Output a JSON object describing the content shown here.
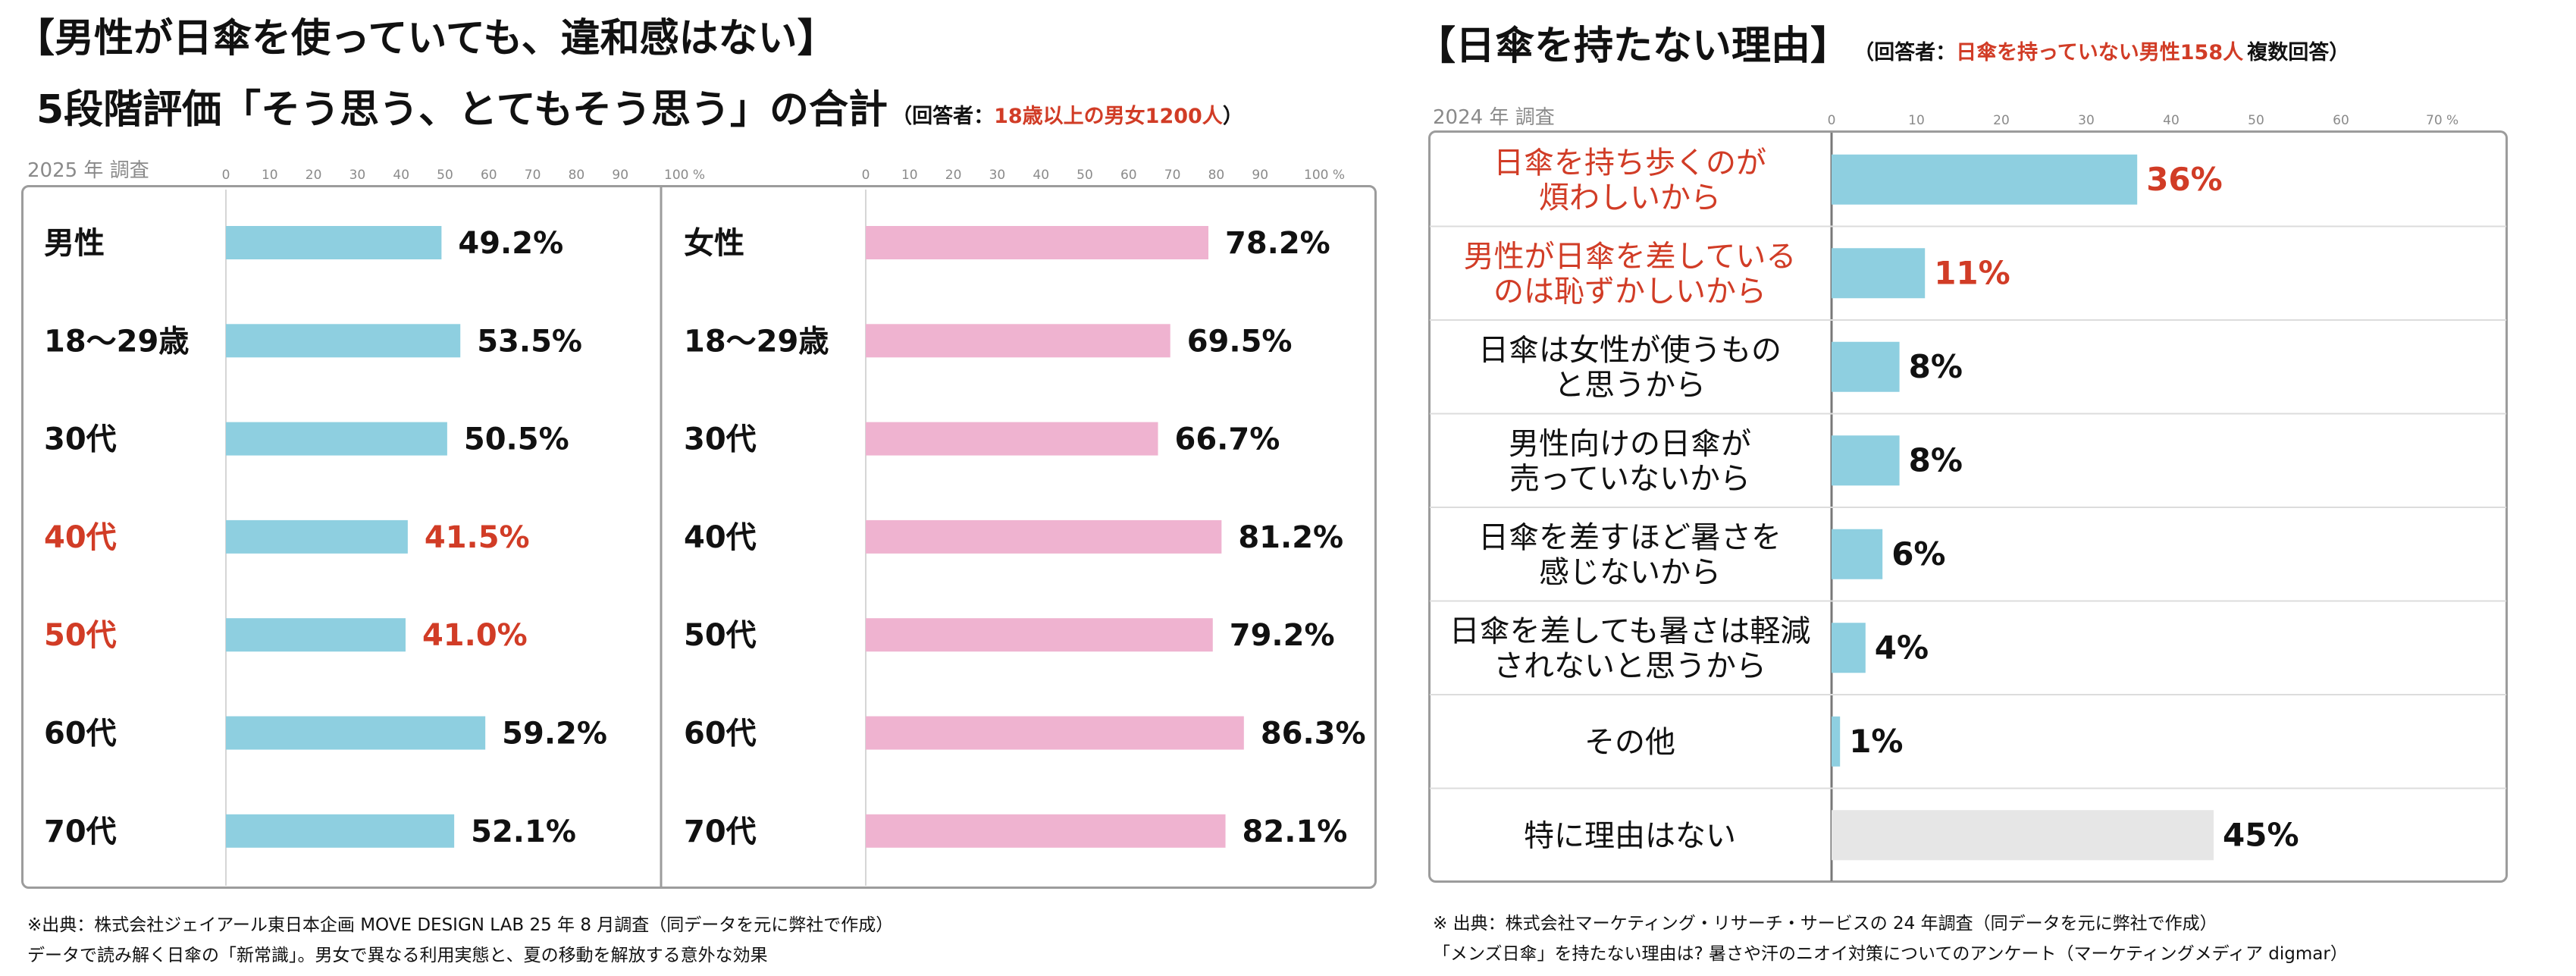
{
  "left": {
    "title": "【男性が日傘を使っていても、違和感はない】",
    "subtitle": "5段階評価「そう思う、とてもそう思う」の合計",
    "respondent_prefix": "（回答者：",
    "respondent_highlight": "18歳以上の男女1200人",
    "respondent_suffix": "）",
    "survey_label": "2025 年 調査",
    "source_line1": "※出典：株式会社ジェイアール東日本企画 MOVE DESIGN LAB 25 年 8 月調査（同データを元に弊社で作成）",
    "source_line2": "データで読み解く日傘の「新常識」。男女で異なる利用実態と、夏の移動を解放する意外な効果"
  },
  "right": {
    "title": "【日傘を持たない理由】",
    "respondent_prefix": "（回答者：",
    "respondent_highlight": "日傘を持っていない男性158人",
    "respondent_suffix": "複数回答）",
    "survey_label": "2024 年 調査",
    "source_line1": "※ 出典：株式会社マーケティング・リサーチ・サービスの 24 年調査（同データを元に弊社で作成）",
    "source_line2": "「メンズ日傘」を持たない理由は? 暑さや汗のニオイ対策についてのアンケート（マーケティングメディア digmar）"
  },
  "chart_data": [
    {
      "type": "bar",
      "orientation": "horizontal",
      "title": "男性",
      "categories": [
        "男性",
        "18〜29歳",
        "30代",
        "40代",
        "50代",
        "60代",
        "70代"
      ],
      "values": [
        49.2,
        53.5,
        50.5,
        41.5,
        41.0,
        59.2,
        52.1
      ],
      "value_labels": [
        "49.2%",
        "53.5%",
        "50.5%",
        "41.5%",
        "41.0%",
        "59.2%",
        "52.1%"
      ],
      "highlight": [
        false,
        false,
        false,
        true,
        true,
        false,
        false
      ],
      "xlim": [
        0,
        100
      ],
      "ticks": [
        "0",
        "10",
        "20",
        "30",
        "40",
        "50",
        "60",
        "70",
        "80",
        "90",
        "100 %"
      ],
      "color": "#8ecfe0",
      "highlight_color": "#d13c26"
    },
    {
      "type": "bar",
      "orientation": "horizontal",
      "title": "女性",
      "categories": [
        "女性",
        "18〜29歳",
        "30代",
        "40代",
        "50代",
        "60代",
        "70代"
      ],
      "values": [
        78.2,
        69.5,
        66.7,
        81.2,
        79.2,
        86.3,
        82.1
      ],
      "value_labels": [
        "78.2%",
        "69.5%",
        "66.7%",
        "81.2%",
        "79.2%",
        "86.3%",
        "82.1%"
      ],
      "xlim": [
        0,
        100
      ],
      "ticks": [
        "0",
        "10",
        "20",
        "30",
        "40",
        "50",
        "60",
        "70",
        "80",
        "90",
        "100 %"
      ],
      "color": "#efb3d0"
    },
    {
      "type": "bar",
      "orientation": "horizontal",
      "title": "日傘を持たない理由",
      "categories": [
        [
          "日傘を持ち歩くのが",
          "煩わしいから"
        ],
        [
          "男性が日傘を差している",
          "のは恥ずかしいから"
        ],
        [
          "日傘は女性が使うもの",
          "と思うから"
        ],
        [
          "男性向けの日傘が",
          "売っていないから"
        ],
        [
          "日傘を差すほど暑さを",
          "感じないから"
        ],
        [
          "日傘を差しても暑さは軽減",
          "されないと思うから"
        ],
        [
          "その他"
        ],
        [
          "特に理由はない"
        ]
      ],
      "values": [
        36,
        11,
        8,
        8,
        6,
        4,
        1,
        45
      ],
      "value_labels": [
        "36%",
        "11%",
        "8%",
        "8%",
        "6%",
        "4%",
        "1%",
        "45%"
      ],
      "highlight": [
        true,
        true,
        false,
        false,
        false,
        false,
        false,
        false
      ],
      "gray": [
        false,
        false,
        false,
        false,
        false,
        false,
        false,
        true
      ],
      "xlim": [
        0,
        70
      ],
      "ticks": [
        "0",
        "10",
        "20",
        "30",
        "40",
        "50",
        "60",
        "70 %"
      ],
      "color": "#8ecfe0",
      "gray_color": "#e6e6e6",
      "highlight_color": "#d13c26"
    }
  ]
}
